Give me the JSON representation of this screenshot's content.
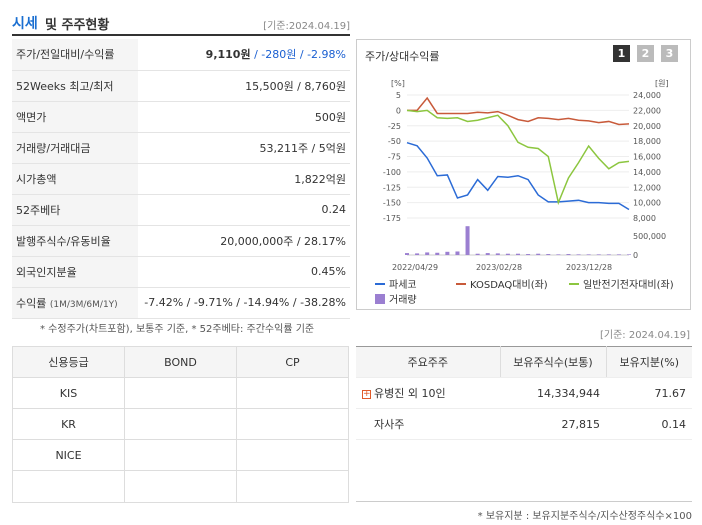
{
  "header": {
    "title_main": "시세",
    "title_rest": "및 주주현황",
    "date": "[기준:2024.04.19]"
  },
  "quote_rows": [
    {
      "label": "주가/전일대비/수익률",
      "price": "9,110원",
      "change": " / -280원 / -2.98%"
    },
    {
      "label": "52Weeks 최고/최저",
      "value": "15,500원 / 8,760원"
    },
    {
      "label": "액면가",
      "value": "500원"
    },
    {
      "label": "거래량/거래대금",
      "value": "53,211주 / 5억원"
    },
    {
      "label": "시가총액",
      "value": "1,822억원"
    },
    {
      "label": "52주베타",
      "value": "0.24"
    },
    {
      "label": "발행주식수/유동비율",
      "value": "20,000,000주 / 28.17%"
    },
    {
      "label": "외국인지분율",
      "value": "0.45%"
    },
    {
      "label": "수익률",
      "sublabel": "(1M/3M/6M/1Y)",
      "value": "-7.42% / -9.71% / -14.94% / -38.28%"
    }
  ],
  "note1": "* 수정주가(차트포함), 보통주 기준, * 52주베타: 주간수익률 기준",
  "chart_panel": {
    "title": "주가/상대수익률",
    "pages": [
      "1",
      "2",
      "3"
    ],
    "active_page": 0
  },
  "chart_data": {
    "type": "line",
    "left_unit": "[%]",
    "right_unit": "[원]",
    "left_ticks": [
      "5",
      "0",
      "-25",
      "-50",
      "-75",
      "-100",
      "-125",
      "-150",
      "-175"
    ],
    "left_ticks_display": [
      "5",
      "0",
      "-25",
      "-50",
      "-75",
      "-100",
      "-125",
      "-150",
      "-175"
    ],
    "right_ticks": [
      "24,000",
      "22,000",
      "20,000",
      "18,000",
      "16,000",
      "14,000",
      "12,000",
      "10,000",
      "8,000"
    ],
    "volume_ticks": [
      "500,000",
      "0"
    ],
    "x_ticks": [
      "2022/04/29",
      "2023/02/28",
      "2023/12/28"
    ],
    "ylim_left": [
      -185,
      10
    ],
    "ylim_right": [
      8000,
      24000
    ],
    "series": [
      {
        "name": "파세코",
        "color": "#2b6bd6",
        "axis": "right",
        "values": [
          17800,
          17400,
          15800,
          13500,
          13600,
          10600,
          11000,
          13000,
          11600,
          13400,
          13300,
          13500,
          13000,
          11000,
          10100,
          10100,
          10200,
          10300,
          10000,
          10000,
          9900,
          9900,
          9100
        ]
      },
      {
        "name": "KOSDAQ대비(좌)",
        "color": "#c85a3a",
        "axis": "left",
        "values": [
          0,
          0,
          4,
          -5,
          -5,
          -5,
          -5,
          -3,
          -4,
          -2,
          -8,
          -15,
          -18,
          -12,
          -13,
          -15,
          -13,
          -16,
          -17,
          -20,
          -18,
          -23,
          -22
        ]
      },
      {
        "name": "일반전기전자대비(좌)",
        "color": "#8cc63f",
        "axis": "left",
        "values": [
          0,
          -2,
          0,
          -12,
          -13,
          -12,
          -18,
          -16,
          -12,
          -8,
          -25,
          -52,
          -60,
          -62,
          -75,
          -150,
          -110,
          -85,
          -58,
          -78,
          -95,
          -85,
          -83
        ]
      },
      {
        "name": "거래량",
        "color": "#9b7fd1",
        "axis": "volume",
        "values": [
          60000,
          50000,
          80000,
          70000,
          100000,
          110000,
          900000,
          40000,
          60000,
          50000,
          40000,
          40000,
          30000,
          40000,
          30000,
          20000,
          30000,
          20000,
          20000,
          20000,
          20000,
          20000,
          20000
        ]
      }
    ],
    "legend": [
      "파세코",
      "KOSDAQ대비(좌)",
      "일반전기전자대비(좌)",
      "거래량"
    ],
    "volume_max": 1000000
  },
  "date2": "[기준: 2024.04.19]",
  "credit": {
    "headers": [
      "신용등급",
      "BOND",
      "CP"
    ],
    "rows": [
      "KIS",
      "KR",
      "NICE",
      ""
    ]
  },
  "holders": {
    "headers": [
      "주요주주",
      "보유주식수(보통)",
      "보유지분(%)"
    ],
    "rows": [
      {
        "name": "유병진 외 10인",
        "shares": "14,334,944",
        "pct": "71.67"
      },
      {
        "name": "자사주",
        "shares": "27,815",
        "pct": "0.14"
      }
    ]
  },
  "note2": "* 보유지분 : 보유지분주식수/지수산정주식수×100"
}
